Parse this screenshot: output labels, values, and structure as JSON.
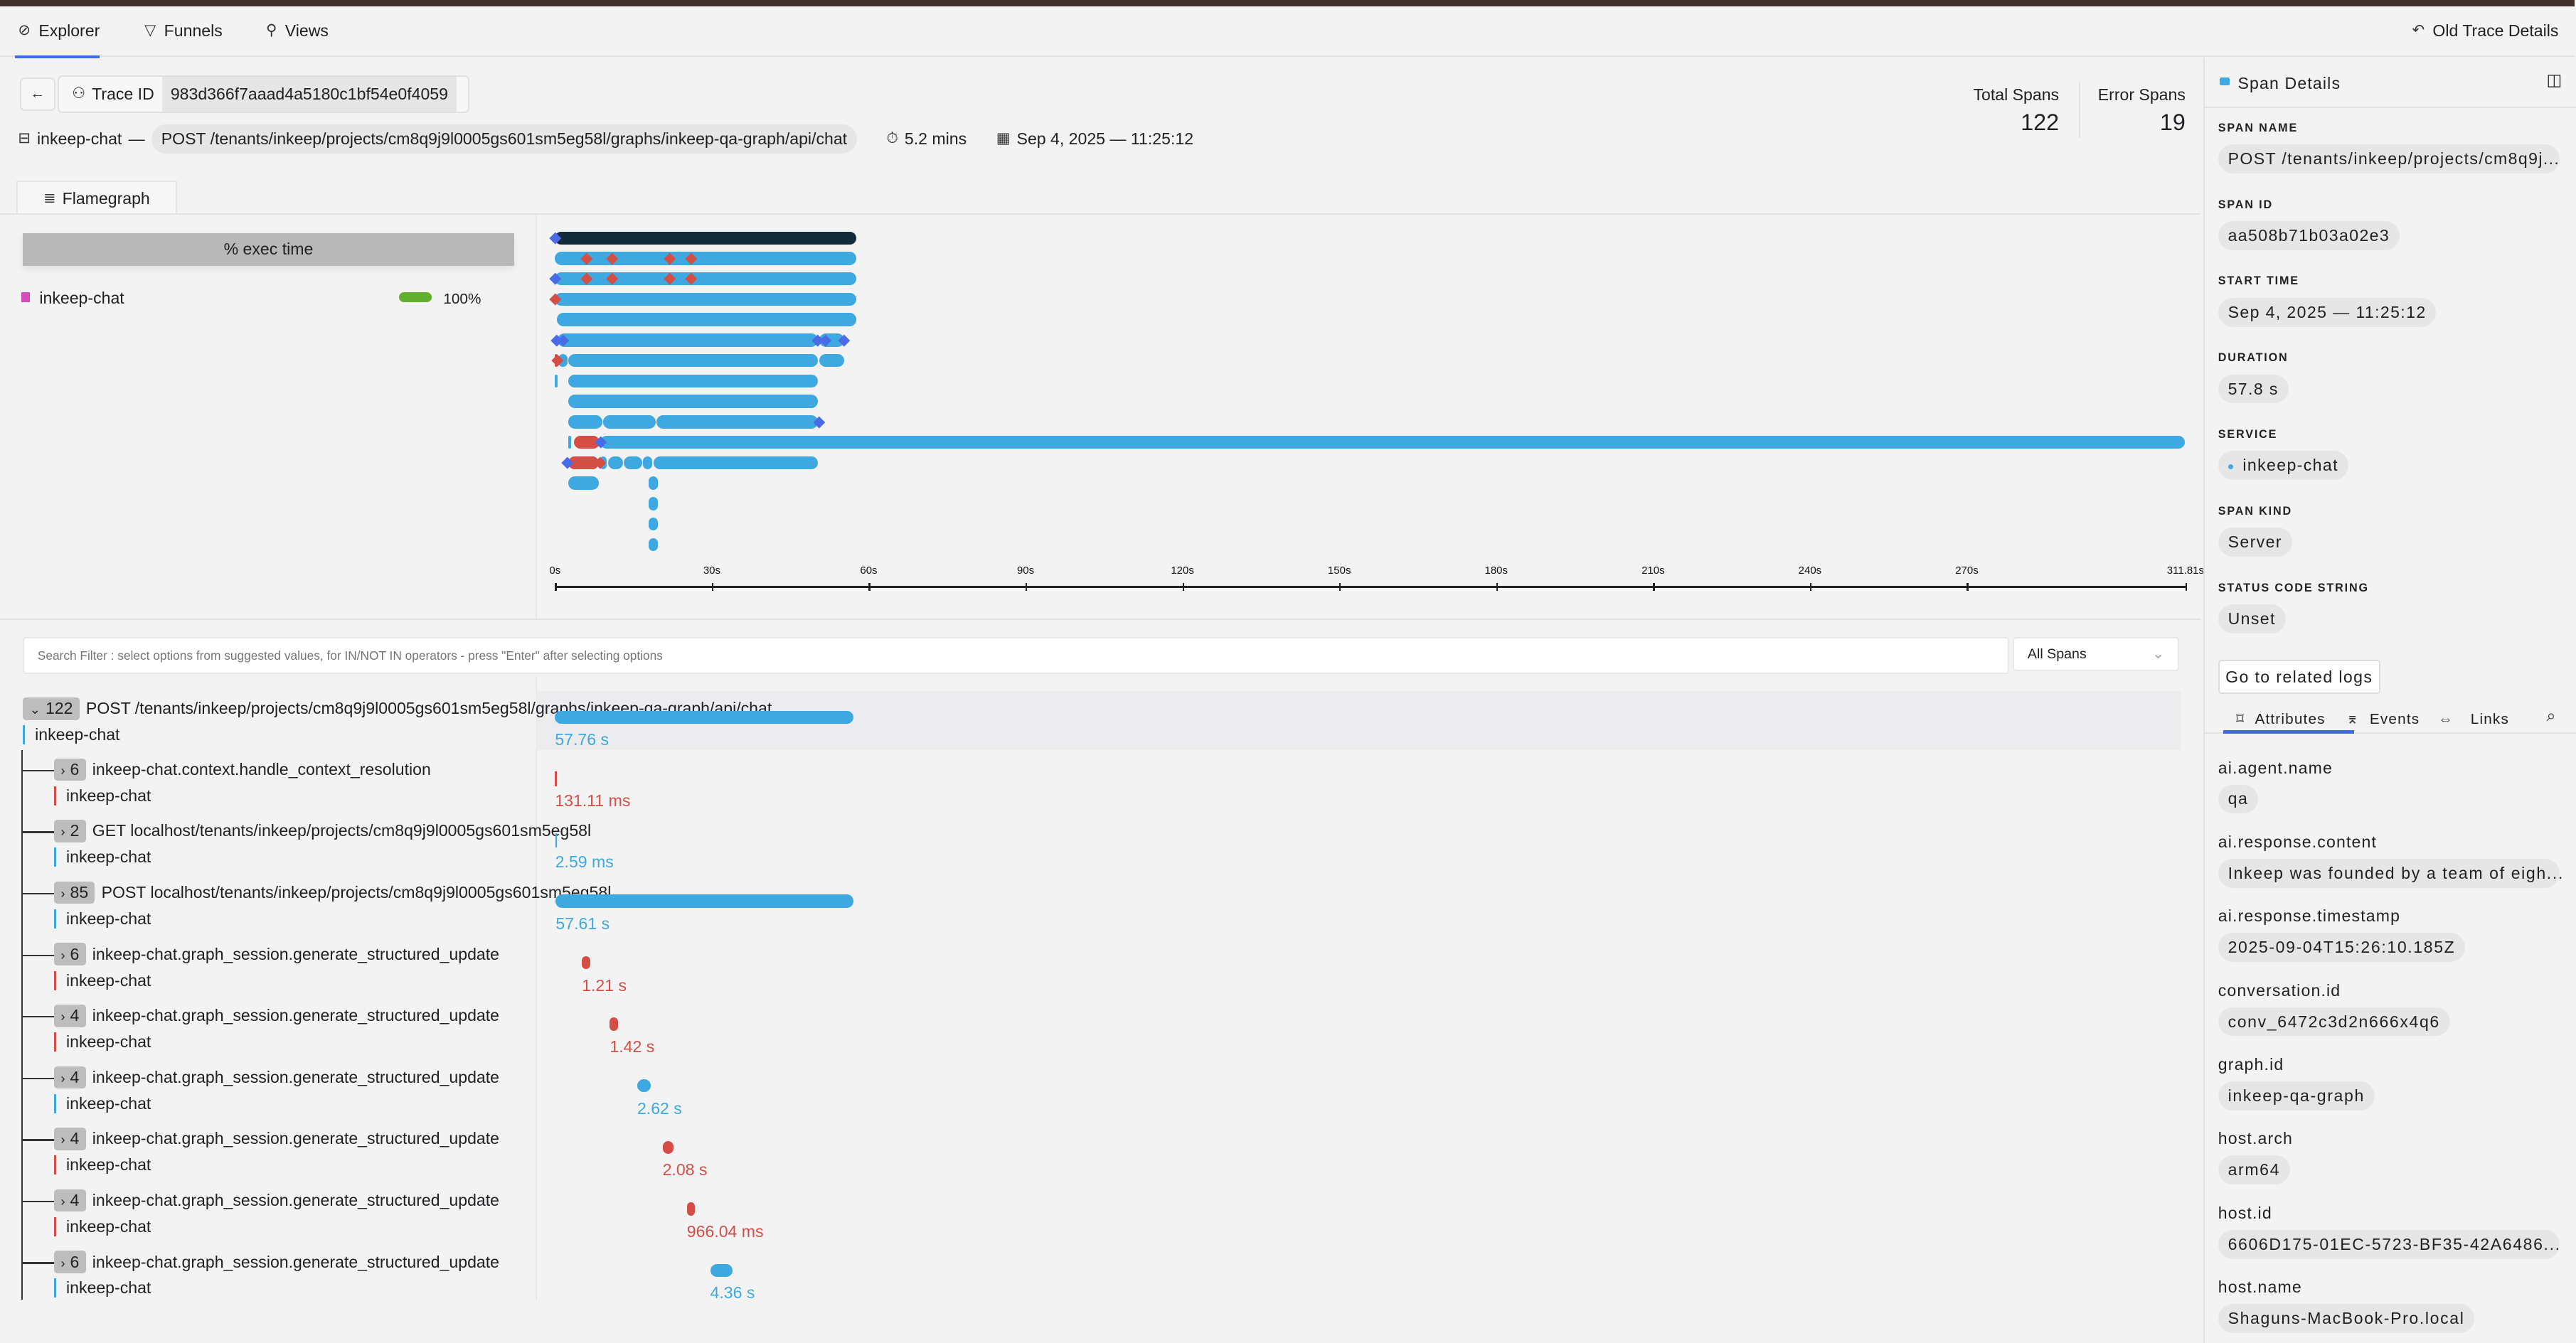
{
  "nav": {
    "tabs": [
      {
        "label": "Explorer",
        "icon": "compass-icon",
        "active": true
      },
      {
        "label": "Funnels",
        "icon": "funnel-icon",
        "active": false
      },
      {
        "label": "Views",
        "icon": "views-icon",
        "active": false
      }
    ],
    "old_trace_details": "Old Trace Details"
  },
  "header": {
    "trace_id_label": "Trace ID",
    "trace_id": "983d366f7aaad4a5180c1bf54e0f4059",
    "service": "inkeep-chat",
    "dash": "—",
    "root_span": "POST /tenants/inkeep/projects/cm8q9j9l0005gs601sm5eg58l/graphs/inkeep-qa-graph/api/chat",
    "duration": "5.2 mins",
    "start": "Sep 4, 2025 — 11:25:12",
    "total_spans_label": "Total Spans",
    "total_spans": "122",
    "error_spans_label": "Error Spans",
    "error_spans": "19"
  },
  "flamegraph": {
    "tab_label": "Flamegraph",
    "exec_header": "% exec time",
    "legend": [
      {
        "service": "inkeep-chat",
        "percent": "100%",
        "swatch": "#d94bb8",
        "bar": "#62b02d"
      }
    ],
    "axis_ticks": [
      "0s",
      "30s",
      "60s",
      "90s",
      "120s",
      "150s",
      "180s",
      "210s",
      "240s",
      "270s",
      "311.81s"
    ],
    "axis_max_s": 311.81,
    "colors": {
      "root": "#122b3a",
      "ok": "#3ea8e0",
      "error": "#d44e45",
      "event": "#4a6be6"
    },
    "rows": [
      {
        "segs": [
          [
            0,
            57.8,
            "root"
          ]
        ],
        "events": [
          [
            0,
            "event"
          ]
        ]
      },
      {
        "segs": [
          [
            0,
            57.8,
            "ok"
          ]
        ],
        "events": [
          [
            6,
            "error"
          ],
          [
            11,
            "error"
          ],
          [
            22,
            "error"
          ],
          [
            26,
            "error"
          ]
        ]
      },
      {
        "segs": [
          [
            0,
            57.8,
            "ok"
          ]
        ],
        "events": [
          [
            0,
            "event"
          ],
          [
            6,
            "error"
          ],
          [
            11,
            "error"
          ],
          [
            22,
            "error"
          ],
          [
            26,
            "error"
          ]
        ]
      },
      {
        "segs": [
          [
            0,
            57.8,
            "ok"
          ]
        ],
        "events": [
          [
            0,
            "error"
          ]
        ]
      },
      {
        "segs": [
          [
            0.3,
            57.8,
            "ok"
          ]
        ],
        "events": []
      },
      {
        "segs": [
          [
            0.5,
            50.5,
            "ok"
          ],
          [
            50.5,
            55.5,
            "ok"
          ]
        ],
        "events": [
          [
            0.3,
            "event"
          ],
          [
            1.5,
            "event"
          ],
          [
            50.2,
            "event"
          ],
          [
            51.8,
            "event"
          ],
          [
            55.3,
            "event"
          ]
        ]
      },
      {
        "segs": [
          [
            0,
            0.6,
            "error"
          ],
          [
            0.6,
            2.5,
            "ok"
          ],
          [
            2.5,
            50.5,
            "ok"
          ],
          [
            50.5,
            55.5,
            "ok"
          ]
        ],
        "events": [
          [
            0.4,
            "error"
          ]
        ]
      },
      {
        "segs": [
          [
            0,
            0.3,
            "ok"
          ],
          [
            2.5,
            50.5,
            "ok"
          ]
        ],
        "events": []
      },
      {
        "segs": [
          [
            2.5,
            50.5,
            "ok"
          ]
        ],
        "events": []
      },
      {
        "segs": [
          [
            2.5,
            9.2,
            "ok"
          ],
          [
            9.2,
            19.4,
            "ok"
          ],
          [
            19.4,
            50.5,
            "ok"
          ]
        ],
        "events": [
          [
            50.5,
            "event"
          ]
        ]
      },
      {
        "segs": [
          [
            2.5,
            3.2,
            "ok"
          ],
          [
            3.6,
            8.7,
            "error"
          ],
          [
            8.7,
            311.81,
            "ok"
          ]
        ],
        "events": [
          [
            8.8,
            "event"
          ]
        ]
      },
      {
        "segs": [
          [
            2.5,
            8.5,
            "error"
          ],
          [
            8.5,
            10.1,
            "ok"
          ],
          [
            10.1,
            13.2,
            "ok"
          ],
          [
            13.2,
            16.8,
            "ok"
          ],
          [
            16.8,
            18.8,
            "ok"
          ],
          [
            18.8,
            50.5,
            "ok"
          ]
        ],
        "events": [
          [
            2.4,
            "event"
          ],
          [
            8.6,
            "error"
          ]
        ]
      },
      {
        "segs": [
          [
            2.5,
            8.6,
            "ok"
          ],
          [
            17.9,
            19.9,
            "ok"
          ]
        ],
        "events": []
      },
      {
        "segs": [
          [
            17.9,
            19.9,
            "ok"
          ]
        ],
        "events": []
      },
      {
        "segs": [
          [
            17.9,
            19.9,
            "ok"
          ]
        ],
        "events": []
      },
      {
        "segs": [
          [
            17.9,
            19.9,
            "ok"
          ]
        ],
        "events": []
      }
    ]
  },
  "filter": {
    "placeholder": "Search Filter : select options from suggested values, for IN/NOT IN operators - press \"Enter\" after selecting options",
    "span_select": "All Spans"
  },
  "tree": {
    "root": {
      "count": "122",
      "name": "POST /tenants/inkeep/projects/cm8q9j9l0005gs601sm5eg58l/graphs/inkeep-qa-graph/api/chat",
      "service": "inkeep-chat",
      "duration": "57.76 s",
      "start_s": 0,
      "dur_s": 57.76,
      "status": "ok"
    },
    "children": [
      {
        "count": "6",
        "name": "inkeep-chat.context.handle_context_resolution",
        "service": "inkeep-chat",
        "duration": "131.11 ms",
        "start_s": 0,
        "dur_s": 0.13,
        "status": "error"
      },
      {
        "count": "2",
        "name": "GET localhost/tenants/inkeep/projects/cm8q9j9l0005gs601sm5eg58l",
        "service": "inkeep-chat",
        "duration": "2.59 ms",
        "start_s": 0.05,
        "dur_s": 0.003,
        "status": "ok"
      },
      {
        "count": "85",
        "name": "POST localhost/tenants/inkeep/projects/cm8q9j9l0005gs601sm5eg58l",
        "service": "inkeep-chat",
        "duration": "57.61 s",
        "start_s": 0.15,
        "dur_s": 57.61,
        "status": "ok"
      },
      {
        "count": "6",
        "name": "inkeep-chat.graph_session.generate_structured_update",
        "service": "inkeep-chat",
        "duration": "1.21 s",
        "start_s": 5.2,
        "dur_s": 1.21,
        "status": "error"
      },
      {
        "count": "4",
        "name": "inkeep-chat.graph_session.generate_structured_update",
        "service": "inkeep-chat",
        "duration": "1.42 s",
        "start_s": 10.6,
        "dur_s": 1.42,
        "status": "error"
      },
      {
        "count": "4",
        "name": "inkeep-chat.graph_session.generate_structured_update",
        "service": "inkeep-chat",
        "duration": "2.62 s",
        "start_s": 15.9,
        "dur_s": 2.62,
        "status": "ok"
      },
      {
        "count": "4",
        "name": "inkeep-chat.graph_session.generate_structured_update",
        "service": "inkeep-chat",
        "duration": "2.08 s",
        "start_s": 20.8,
        "dur_s": 2.08,
        "status": "error"
      },
      {
        "count": "4",
        "name": "inkeep-chat.graph_session.generate_structured_update",
        "service": "inkeep-chat",
        "duration": "966.04 ms",
        "start_s": 25.5,
        "dur_s": 0.97,
        "status": "error"
      },
      {
        "count": "6",
        "name": "inkeep-chat.graph_session.generate_structured_update",
        "service": "inkeep-chat",
        "duration": "4.36 s",
        "start_s": 30.0,
        "dur_s": 4.36,
        "status": "ok"
      }
    ]
  },
  "details": {
    "title": "Span Details",
    "fields": [
      {
        "label": "SPAN NAME",
        "value": "POST /tenants/inkeep/projects/cm8q9j..."
      },
      {
        "label": "SPAN ID",
        "value": "aa508b71b03a02e3"
      },
      {
        "label": "START TIME",
        "value": "Sep 4, 2025 — 11:25:12"
      },
      {
        "label": "DURATION",
        "value": "57.8 s"
      },
      {
        "label": "SERVICE",
        "value": "inkeep-chat"
      },
      {
        "label": "SPAN KIND",
        "value": "Server"
      },
      {
        "label": "STATUS CODE STRING",
        "value": "Unset"
      }
    ],
    "related_logs": "Go to related logs",
    "tabs": [
      {
        "label": "Attributes",
        "icon": "bookmark-icon",
        "active": true
      },
      {
        "label": "Events",
        "icon": "events-icon",
        "active": false
      },
      {
        "label": "Links",
        "icon": "link-icon",
        "active": false
      }
    ],
    "attributes": [
      {
        "key": "ai.agent.name",
        "value": "qa"
      },
      {
        "key": "ai.response.content",
        "value": "Inkeep was founded by a team of eigh..."
      },
      {
        "key": "ai.response.timestamp",
        "value": "2025-09-04T15:26:10.185Z"
      },
      {
        "key": "conversation.id",
        "value": "conv_6472c3d2n666x4q6"
      },
      {
        "key": "graph.id",
        "value": "inkeep-qa-graph"
      },
      {
        "key": "host.arch",
        "value": "arm64"
      },
      {
        "key": "host.id",
        "value": "6606D175-01EC-5723-BF35-42A6486..."
      },
      {
        "key": "host.name",
        "value": "Shaguns-MacBook-Pro.local"
      }
    ]
  }
}
